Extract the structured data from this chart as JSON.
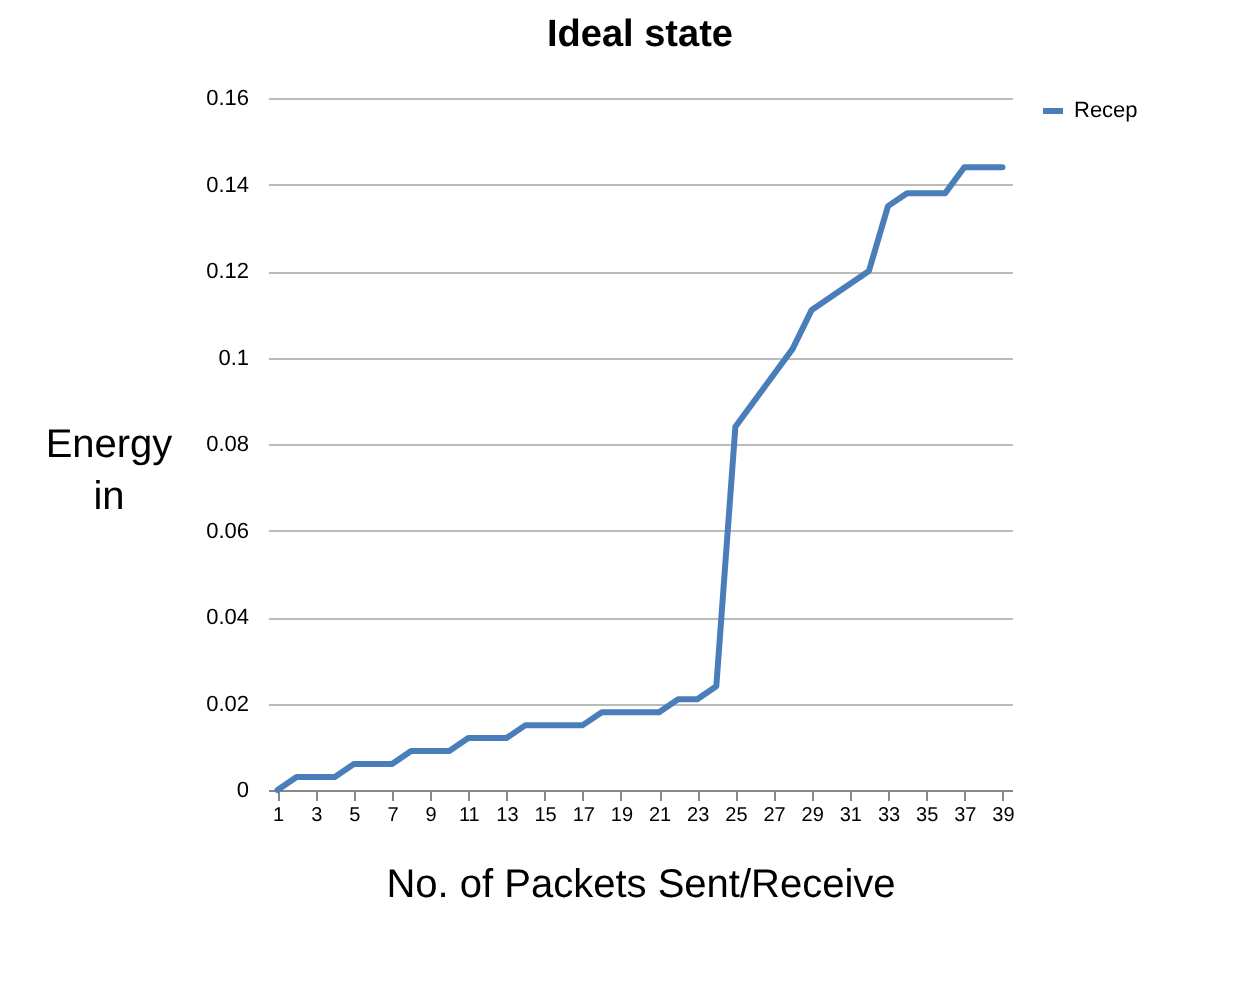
{
  "chart_data": {
    "type": "line",
    "title": "Ideal state",
    "xlabel": "No. of Packets Sent/Receive",
    "ylabel": "Energy in",
    "x": [
      1,
      2,
      3,
      4,
      5,
      6,
      7,
      8,
      9,
      10,
      11,
      12,
      13,
      14,
      15,
      16,
      17,
      18,
      19,
      20,
      21,
      22,
      23,
      24,
      25,
      26,
      27,
      28,
      29,
      30,
      31,
      32,
      33,
      34,
      35,
      36,
      37,
      38,
      39
    ],
    "series": [
      {
        "name": "Recep",
        "color": "#4a7ebb",
        "values": [
          0,
          0.003,
          0.003,
          0.003,
          0.006,
          0.006,
          0.006,
          0.009,
          0.009,
          0.009,
          0.012,
          0.012,
          0.012,
          0.015,
          0.015,
          0.015,
          0.015,
          0.018,
          0.018,
          0.018,
          0.018,
          0.021,
          0.021,
          0.024,
          0.084,
          0.09,
          0.096,
          0.102,
          0.111,
          0.114,
          0.117,
          0.12,
          0.135,
          0.138,
          0.138,
          0.138,
          0.144,
          0.144,
          0.144
        ]
      }
    ],
    "xlim": [
      0.5,
      39.5
    ],
    "xticks": [
      1,
      3,
      5,
      7,
      9,
      11,
      13,
      15,
      17,
      19,
      21,
      23,
      25,
      27,
      29,
      31,
      33,
      35,
      37,
      39
    ],
    "ylim": [
      0,
      0.16
    ],
    "yticks": [
      0,
      0.02,
      0.04,
      0.06,
      0.08,
      0.1,
      0.12,
      0.14,
      0.16
    ],
    "grid": "y",
    "legend": "right",
    "marker": "none",
    "line_style": "solid"
  }
}
